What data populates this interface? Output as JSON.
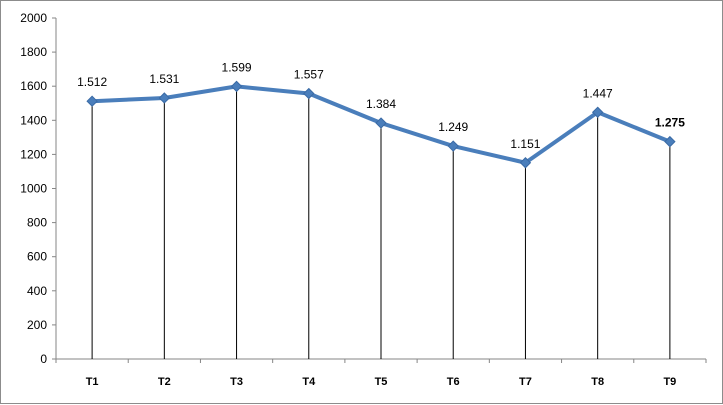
{
  "chart_data": {
    "type": "line",
    "title": "",
    "xlabel": "",
    "ylabel": "",
    "ylim": [
      0,
      2000
    ],
    "yticks": [
      0,
      200,
      400,
      600,
      800,
      1000,
      1200,
      1400,
      1600,
      1800,
      2000
    ],
    "categories": [
      "T1",
      "T2",
      "T3",
      "T4",
      "T5",
      "T6",
      "T7",
      "T8",
      "T9"
    ],
    "series": [
      {
        "values": [
          1512,
          1531,
          1599,
          1557,
          1384,
          1249,
          1151,
          1447,
          1275
        ],
        "labels": [
          "1.512",
          "1.531",
          "1.599",
          "1.557",
          "1.384",
          "1.249",
          "1.151",
          "1.447",
          "1.275"
        ],
        "color": "#4a7ebb",
        "marker": "diamond"
      }
    ],
    "drop_lines": true,
    "grid": false,
    "legend": "none"
  }
}
